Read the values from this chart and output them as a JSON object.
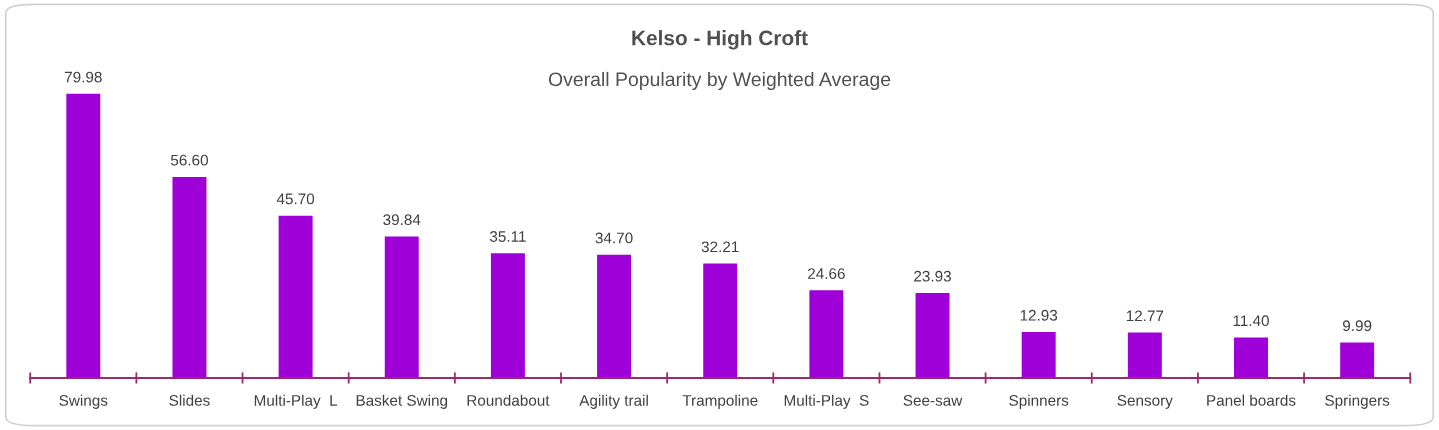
{
  "chart_data": {
    "type": "bar",
    "title": "Kelso - High Croft",
    "subtitle": "Overall Popularity by Weighted Average",
    "categories": [
      "Swings",
      "Slides",
      "Multi-Play  L",
      "Basket Swing",
      "Roundabout",
      "Agility trail",
      "Trampoline",
      "Multi-Play  S",
      "See-saw",
      "Spinners",
      "Sensory",
      "Panel boards",
      "Springers"
    ],
    "values": [
      79.98,
      56.6,
      45.7,
      39.84,
      35.11,
      34.7,
      32.21,
      24.66,
      23.93,
      12.93,
      12.77,
      11.4,
      9.99
    ],
    "value_labels": [
      "79.98",
      "56.60",
      "45.70",
      "39.84",
      "35.11",
      "34.70",
      "32.21",
      "24.66",
      "23.93",
      "12.93",
      "12.77",
      "11.40",
      "9.99"
    ],
    "color": "#a000d8"
  }
}
